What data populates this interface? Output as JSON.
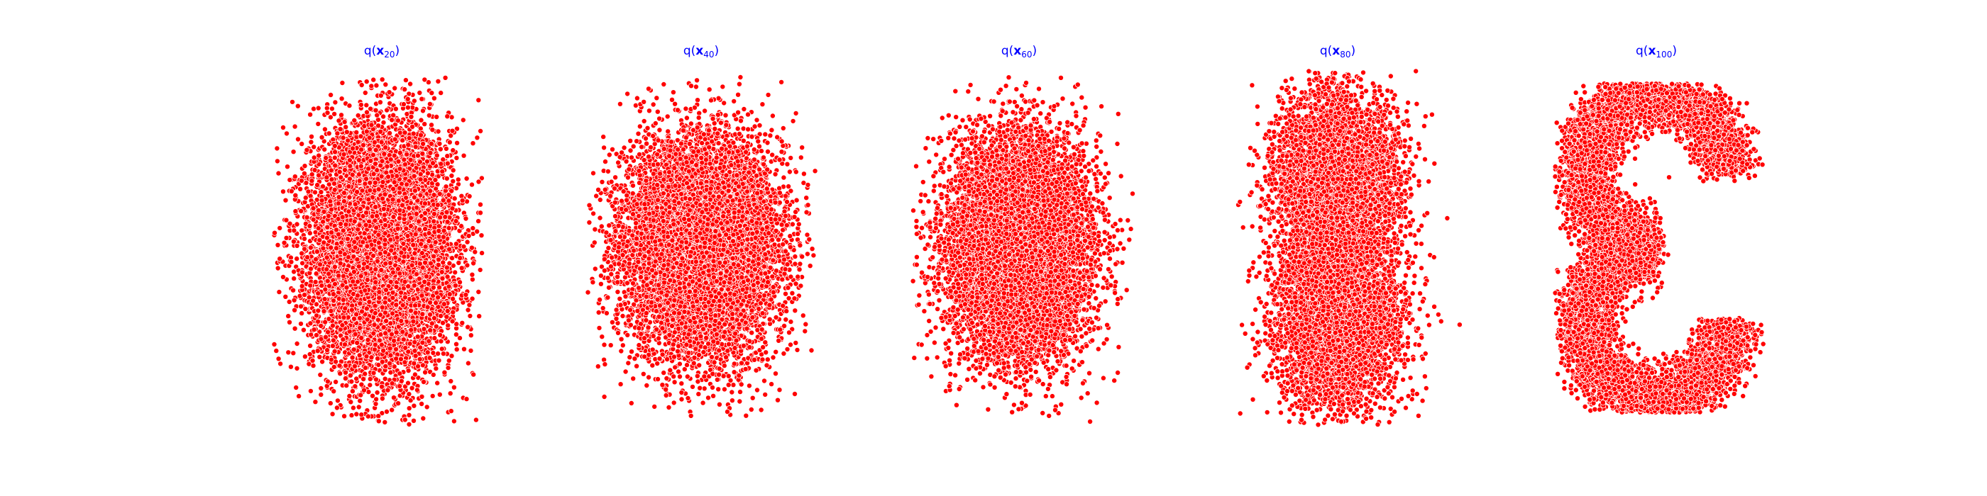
{
  "figure": {
    "background": "#ffffff",
    "title_color": "#0000ff",
    "point_color": "#ff0000",
    "point_edge_color": "#ffffff"
  },
  "chart_data": [
    {
      "type": "scatter",
      "title": {
        "prefix": "q(",
        "symbol": "x",
        "subscript": "20",
        "suffix": ")"
      },
      "axes_visible": false,
      "grid": false,
      "approx_points": 10000,
      "distribution": {
        "shape": "ellipse",
        "center": [
          0.0,
          0.0
        ],
        "spread": [
          0.55,
          0.95
        ],
        "bounds_x": [
          -1.7,
          1.6
        ],
        "bounds_y": [
          -2.8,
          2.7
        ]
      }
    },
    {
      "type": "scatter",
      "title": {
        "prefix": "q(",
        "symbol": "x",
        "subscript": "40",
        "suffix": ")"
      },
      "axes_visible": false,
      "grid": false,
      "approx_points": 10000,
      "distribution": {
        "shape": "ellipse",
        "center": [
          0.0,
          0.0
        ],
        "spread": [
          0.6,
          0.85
        ],
        "bounds_x": [
          -1.8,
          1.8
        ],
        "bounds_y": [
          -2.8,
          2.7
        ]
      }
    },
    {
      "type": "scatter",
      "title": {
        "prefix": "q(",
        "symbol": "x",
        "subscript": "60",
        "suffix": ")"
      },
      "axes_visible": false,
      "grid": false,
      "approx_points": 10000,
      "distribution": {
        "shape": "ellipse",
        "center": [
          0.0,
          0.0
        ],
        "spread": [
          0.55,
          0.85
        ],
        "bounds_x": [
          -1.7,
          1.8
        ],
        "bounds_y": [
          -2.8,
          2.7
        ]
      }
    },
    {
      "type": "scatter",
      "title": {
        "prefix": "q(",
        "symbol": "x",
        "subscript": "80",
        "suffix": ")"
      },
      "axes_visible": false,
      "grid": false,
      "approx_points": 10000,
      "distribution": {
        "shape": "figure-eight",
        "center": [
          0.0,
          0.0
        ],
        "spread": [
          0.5,
          0.9
        ],
        "bounds_x": [
          -1.6,
          2.0
        ],
        "bounds_y": [
          -2.8,
          2.8
        ]
      }
    },
    {
      "type": "scatter",
      "title": {
        "prefix": "q(",
        "symbol": "x",
        "subscript": "100",
        "suffix": ")"
      },
      "axes_visible": false,
      "grid": false,
      "approx_points": 10000,
      "distribution": {
        "shape": "s-curve",
        "center": [
          0.0,
          0.0
        ],
        "spread": [
          0.55,
          0.95
        ],
        "bounds_x": [
          -1.6,
          1.7
        ],
        "bounds_y": [
          -2.6,
          2.6
        ]
      }
    }
  ]
}
